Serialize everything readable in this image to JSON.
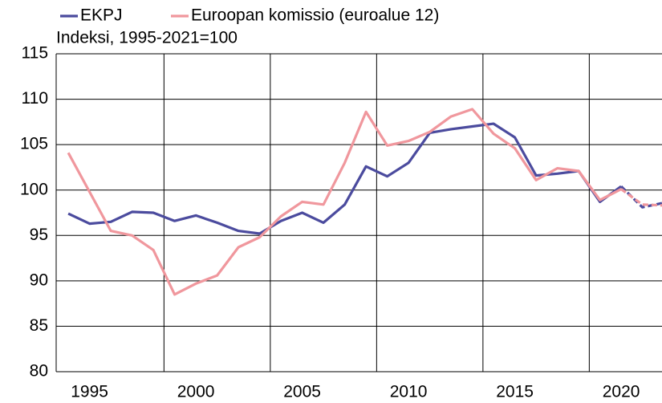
{
  "chart_data": {
    "type": "line",
    "subtitle": "Indeksi, 1995-2021=100",
    "x": [
      1994,
      1995,
      1996,
      1997,
      1998,
      1999,
      2000,
      2001,
      2002,
      2003,
      2004,
      2005,
      2006,
      2007,
      2008,
      2009,
      2010,
      2011,
      2012,
      2013,
      2014,
      2015,
      2016,
      2017,
      2018,
      2019,
      2020,
      2021,
      2022
    ],
    "series": [
      {
        "name": "EKPJ",
        "color": "#4b4b9e",
        "values": [
          97.4,
          96.3,
          96.5,
          97.6,
          97.5,
          96.6,
          97.2,
          96.4,
          95.5,
          95.2,
          96.6,
          97.5,
          96.4,
          98.4,
          102.6,
          101.5,
          103.0,
          106.3,
          106.7,
          107.0,
          107.3,
          105.8,
          101.6,
          101.8,
          102.1,
          98.7,
          100.4,
          98.1,
          98.6
        ]
      },
      {
        "name": "Euroopan komissio (euroalue 12)",
        "color": "#f0979d",
        "values": [
          104.1,
          99.8,
          95.5,
          95.0,
          93.4,
          88.5,
          89.7,
          90.6,
          93.7,
          94.8,
          97.1,
          98.7,
          98.4,
          103.0,
          108.6,
          104.9,
          105.4,
          106.4,
          108.1,
          108.9,
          106.2,
          104.6,
          101.1,
          102.4,
          102.1,
          98.9,
          100.1,
          98.4,
          98.3
        ]
      }
    ],
    "dashed_from": 2020,
    "xlim": [
      1993.43,
      2021.92
    ],
    "xticks": [
      1995,
      2000,
      2005,
      2010,
      2015,
      2020
    ],
    "x_gridlines": [
      1998.5,
      2003.5,
      2008.5,
      2013.5,
      2018.5
    ],
    "ylim": [
      80,
      115
    ],
    "yticks": [
      80,
      85,
      90,
      95,
      100,
      105,
      110,
      115
    ],
    "grid": true
  }
}
